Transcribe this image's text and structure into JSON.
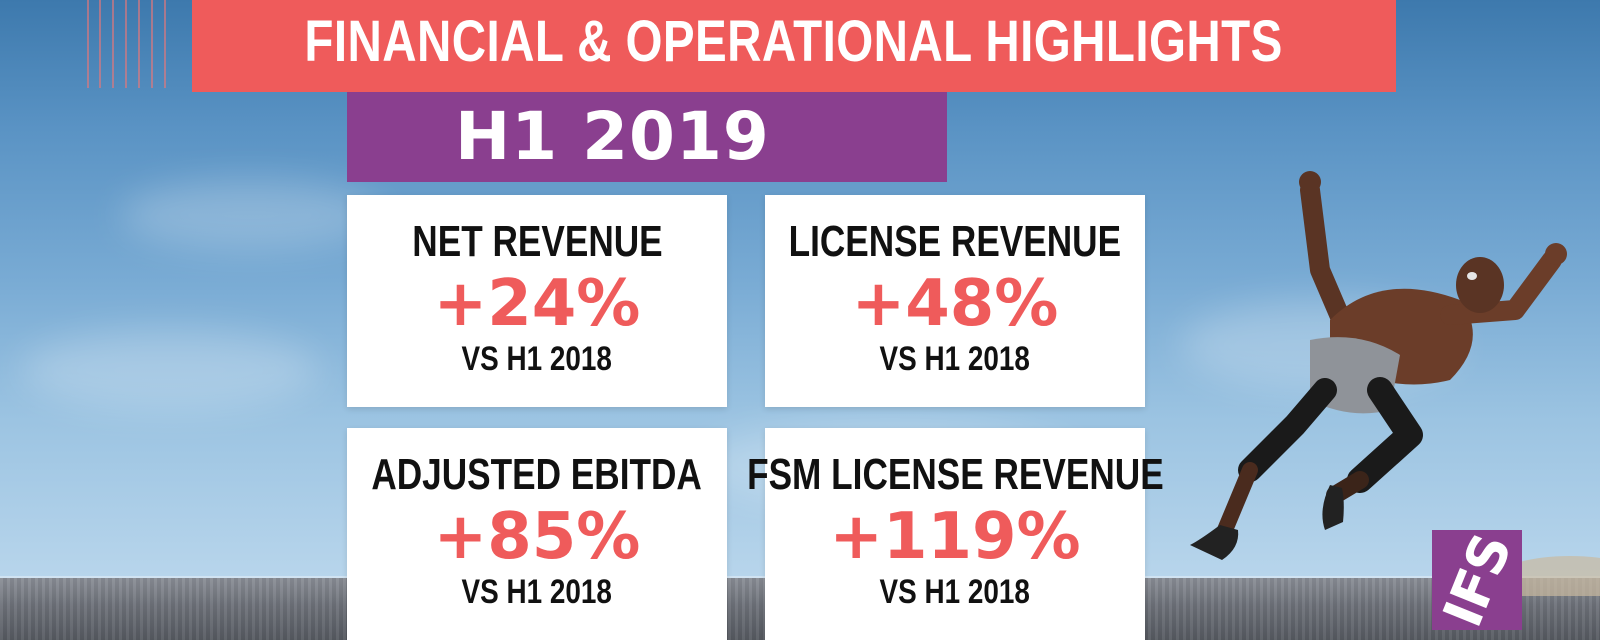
{
  "title": "FINANCIAL & OPERATIONAL HIGHLIGHTS",
  "period": "H1 2019",
  "cards": [
    {
      "label": "NET REVENUE",
      "value": "+24%",
      "compare": "VS H1 2018"
    },
    {
      "label": "LICENSE REVENUE",
      "value": "+48%",
      "compare": "VS H1 2018"
    },
    {
      "label": "ADJUSTED EBITDA",
      "value": "+85%",
      "compare": "VS H1 2018"
    },
    {
      "label": "FSM LICENSE REVENUE",
      "value": "+119%",
      "compare": "VS H1 2018"
    }
  ],
  "logo": {
    "text": "IFS"
  },
  "colors": {
    "accent_red": "#ef5b5b",
    "accent_purple": "#8a3f8f",
    "card_bg": "#ffffff",
    "text_dark": "#111111"
  }
}
